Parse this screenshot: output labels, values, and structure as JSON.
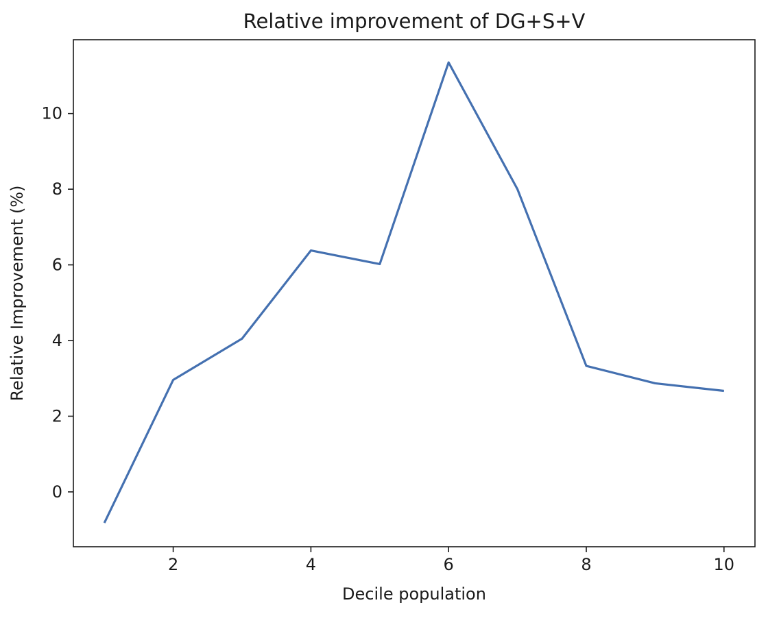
{
  "chart_data": {
    "type": "line",
    "title": "Relative improvement of DG+S+V",
    "xlabel": "Decile population",
    "ylabel": "Relative Improvement (%)",
    "x": [
      1,
      2,
      3,
      4,
      5,
      6,
      7,
      8,
      9,
      10
    ],
    "series": [
      {
        "values": [
          -0.82,
          2.96,
          4.05,
          6.38,
          6.02,
          11.35,
          8.0,
          3.33,
          2.87,
          2.67
        ],
        "color": "#4470b0"
      }
    ],
    "xlim": [
      0.55,
      10.45
    ],
    "ylim": [
      -1.45,
      11.95
    ],
    "xticks": [
      2,
      4,
      6,
      8,
      10
    ],
    "yticks": [
      0,
      2,
      4,
      6,
      8,
      10
    ],
    "grid": false,
    "legend": "none"
  }
}
